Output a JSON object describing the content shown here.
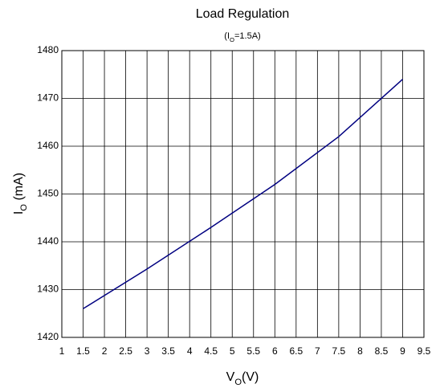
{
  "chart_data": {
    "type": "line",
    "title": "Load Regulation",
    "subtitle": [
      "(I",
      "O",
      "=1.5A)"
    ],
    "xlabel": [
      "V",
      "O",
      "(V)"
    ],
    "ylabel": [
      "I",
      "O",
      " (mA)"
    ],
    "x": [
      1.5,
      3,
      4.5,
      6,
      7.5,
      9
    ],
    "series": [
      {
        "name": "Load Regulation",
        "color": "#000080",
        "values": [
          1426,
          1434.3,
          1443,
          1452,
          1462,
          1474
        ]
      }
    ],
    "xlim": [
      1,
      9.5
    ],
    "xticks": [
      1,
      1.5,
      2,
      2.5,
      3,
      3.5,
      4,
      4.5,
      5,
      5.5,
      6,
      6.5,
      7,
      7.5,
      8,
      8.5,
      9,
      9.5
    ],
    "ylim": [
      1420,
      1480
    ],
    "yticks": [
      1420,
      1430,
      1440,
      1450,
      1460,
      1470,
      1480
    ],
    "grid": true
  }
}
